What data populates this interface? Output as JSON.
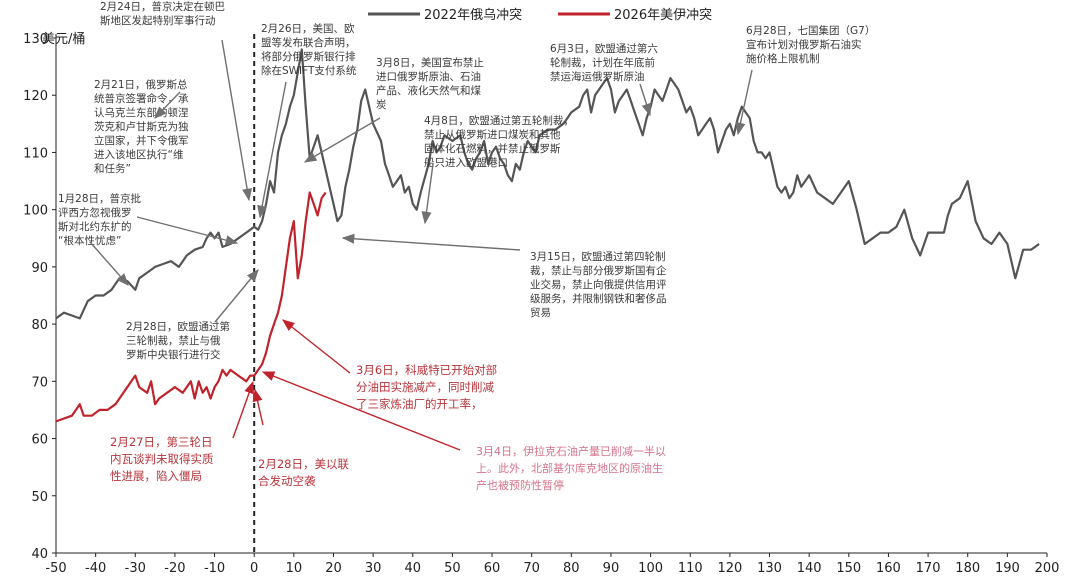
{
  "chart_data": {
    "type": "line",
    "ylabel": "美元/桶",
    "xlim": [
      -50,
      200
    ],
    "ylim": [
      40,
      130
    ],
    "xticks": [
      -50,
      -40,
      -30,
      -20,
      -10,
      0,
      10,
      20,
      30,
      40,
      50,
      60,
      70,
      80,
      90,
      100,
      110,
      120,
      130,
      140,
      150,
      160,
      170,
      180,
      190,
      200
    ],
    "yticks": [
      40,
      50,
      60,
      70,
      80,
      90,
      100,
      110,
      120,
      130
    ],
    "vline_x": 0,
    "legend_position": "top-center",
    "series": [
      {
        "name": "2022年俄乌冲突",
        "color": "#555555",
        "points": [
          [
            -50,
            81
          ],
          [
            -48,
            82
          ],
          [
            -46,
            81.5
          ],
          [
            -44,
            81
          ],
          [
            -42,
            84
          ],
          [
            -40,
            85
          ],
          [
            -38,
            85
          ],
          [
            -36,
            86
          ],
          [
            -34,
            88
          ],
          [
            -32,
            87.5
          ],
          [
            -30,
            86
          ],
          [
            -29,
            88
          ],
          [
            -27,
            89
          ],
          [
            -25,
            90
          ],
          [
            -23,
            90.5
          ],
          [
            -21,
            91
          ],
          [
            -19,
            90
          ],
          [
            -17,
            92
          ],
          [
            -15,
            93
          ],
          [
            -13,
            93.5
          ],
          [
            -12,
            95
          ],
          [
            -11,
            96
          ],
          [
            -10,
            95
          ],
          [
            -9,
            96
          ],
          [
            -8,
            93.5
          ],
          [
            -6,
            94
          ],
          [
            -4,
            95
          ],
          [
            -2,
            96
          ],
          [
            0,
            97
          ],
          [
            1,
            96.5
          ],
          [
            2,
            98
          ],
          [
            3,
            101
          ],
          [
            4,
            105
          ],
          [
            5,
            103
          ],
          [
            6,
            110
          ],
          [
            7,
            113
          ],
          [
            8,
            115
          ],
          [
            9,
            118
          ],
          [
            10,
            120
          ],
          [
            11,
            124
          ],
          [
            12,
            128
          ],
          [
            13,
            118
          ],
          [
            14,
            109
          ],
          [
            15,
            111
          ],
          [
            16,
            113
          ],
          [
            17,
            110
          ],
          [
            18,
            107
          ],
          [
            19,
            104
          ],
          [
            20,
            101
          ],
          [
            21,
            98
          ],
          [
            22,
            99
          ],
          [
            23,
            104
          ],
          [
            24,
            107
          ],
          [
            25,
            111
          ],
          [
            26,
            114
          ],
          [
            27,
            119
          ],
          [
            28,
            121
          ],
          [
            29,
            118
          ],
          [
            30,
            115
          ],
          [
            32,
            112
          ],
          [
            33,
            108
          ],
          [
            34,
            106
          ],
          [
            35,
            104
          ],
          [
            36,
            105
          ],
          [
            37,
            106
          ],
          [
            38,
            103
          ],
          [
            39,
            104
          ],
          [
            40,
            101
          ],
          [
            41,
            100
          ],
          [
            42,
            103
          ],
          [
            44,
            108
          ],
          [
            45,
            112
          ],
          [
            46,
            110
          ],
          [
            47,
            111
          ],
          [
            48,
            113
          ],
          [
            50,
            112
          ],
          [
            52,
            113
          ],
          [
            53,
            110
          ],
          [
            54,
            108
          ],
          [
            55,
            107
          ],
          [
            56,
            109
          ],
          [
            57,
            110
          ],
          [
            58,
            112
          ],
          [
            59,
            108
          ],
          [
            60,
            110
          ],
          [
            61,
            111
          ],
          [
            62,
            109
          ],
          [
            63,
            108
          ],
          [
            64,
            106
          ],
          [
            65,
            105
          ],
          [
            66,
            108
          ],
          [
            67,
            107
          ],
          [
            68,
            110
          ],
          [
            69,
            112
          ],
          [
            70,
            111
          ],
          [
            71,
            110
          ],
          [
            72,
            113
          ],
          [
            74,
            114
          ],
          [
            76,
            114
          ],
          [
            78,
            115
          ],
          [
            79,
            116
          ],
          [
            80,
            117
          ],
          [
            82,
            118
          ],
          [
            83,
            120
          ],
          [
            84,
            121
          ],
          [
            85,
            117
          ],
          [
            86,
            120
          ],
          [
            88,
            122
          ],
          [
            89,
            123
          ],
          [
            90,
            121
          ],
          [
            91,
            117
          ],
          [
            92,
            119
          ],
          [
            93,
            120
          ],
          [
            94,
            121
          ],
          [
            95,
            119
          ],
          [
            96,
            117
          ],
          [
            97,
            115
          ],
          [
            98,
            113
          ],
          [
            99,
            116
          ],
          [
            100,
            118
          ],
          [
            101,
            121
          ],
          [
            102,
            120
          ],
          [
            103,
            119
          ],
          [
            104,
            121
          ],
          [
            105,
            123
          ],
          [
            106,
            122
          ],
          [
            107,
            121
          ],
          [
            108,
            119
          ],
          [
            109,
            117
          ],
          [
            110,
            118
          ],
          [
            111,
            116
          ],
          [
            112,
            113
          ],
          [
            113,
            114
          ],
          [
            114,
            115
          ],
          [
            115,
            116
          ],
          [
            116,
            114
          ],
          [
            117,
            110
          ],
          [
            118,
            112
          ],
          [
            119,
            114
          ],
          [
            120,
            115
          ],
          [
            121,
            113
          ],
          [
            122,
            116
          ],
          [
            123,
            118
          ],
          [
            124,
            117
          ],
          [
            125,
            116
          ],
          [
            126,
            112
          ],
          [
            127,
            110
          ],
          [
            128,
            110
          ],
          [
            129,
            109
          ],
          [
            130,
            110
          ],
          [
            131,
            107
          ],
          [
            132,
            104
          ],
          [
            133,
            103
          ],
          [
            134,
            104
          ],
          [
            135,
            102
          ],
          [
            136,
            103
          ],
          [
            137,
            106
          ],
          [
            138,
            104
          ],
          [
            139,
            105
          ],
          [
            140,
            106
          ],
          [
            142,
            103
          ],
          [
            144,
            102
          ],
          [
            146,
            101
          ],
          [
            148,
            103
          ],
          [
            150,
            105
          ],
          [
            152,
            100
          ],
          [
            154,
            94
          ],
          [
            156,
            95
          ],
          [
            158,
            96
          ],
          [
            160,
            96
          ],
          [
            162,
            97
          ],
          [
            164,
            100
          ],
          [
            166,
            95
          ],
          [
            168,
            92
          ],
          [
            170,
            96
          ],
          [
            172,
            96
          ],
          [
            174,
            96
          ],
          [
            175,
            99
          ],
          [
            176,
            101
          ],
          [
            178,
            102
          ],
          [
            180,
            105
          ],
          [
            182,
            98
          ],
          [
            184,
            95
          ],
          [
            186,
            94
          ],
          [
            188,
            96
          ],
          [
            190,
            94
          ],
          [
            192,
            88
          ],
          [
            194,
            93
          ],
          [
            196,
            93
          ],
          [
            198,
            94
          ]
        ]
      },
      {
        "name": "2026年美伊冲突",
        "color": "#c0232b",
        "points": [
          [
            -50,
            63
          ],
          [
            -48,
            63.5
          ],
          [
            -46,
            64
          ],
          [
            -44,
            66
          ],
          [
            -43,
            64
          ],
          [
            -41,
            64
          ],
          [
            -39,
            65
          ],
          [
            -37,
            65
          ],
          [
            -35,
            66
          ],
          [
            -33,
            68
          ],
          [
            -31,
            70
          ],
          [
            -30,
            71
          ],
          [
            -29,
            69
          ],
          [
            -27,
            68
          ],
          [
            -26,
            70
          ],
          [
            -25,
            66
          ],
          [
            -24,
            67
          ],
          [
            -22,
            68
          ],
          [
            -20,
            69
          ],
          [
            -18,
            68
          ],
          [
            -16,
            70
          ],
          [
            -15,
            67
          ],
          [
            -14,
            70
          ],
          [
            -13,
            68
          ],
          [
            -12,
            69
          ],
          [
            -11,
            67
          ],
          [
            -10,
            69
          ],
          [
            -9,
            70
          ],
          [
            -8,
            72
          ],
          [
            -7,
            71
          ],
          [
            -6,
            72
          ],
          [
            -4,
            71
          ],
          [
            -2,
            70
          ],
          [
            -1,
            71
          ],
          [
            0,
            71
          ],
          [
            1,
            72
          ],
          [
            2,
            73
          ],
          [
            3,
            75
          ],
          [
            4,
            78
          ],
          [
            5,
            80
          ],
          [
            6,
            82
          ],
          [
            7,
            85
          ],
          [
            8,
            90
          ],
          [
            9,
            95
          ],
          [
            10,
            98
          ],
          [
            11,
            88
          ],
          [
            12,
            92
          ],
          [
            13,
            98
          ],
          [
            14,
            103
          ],
          [
            15,
            101
          ],
          [
            16,
            99
          ],
          [
            17,
            102
          ],
          [
            18,
            103
          ]
        ]
      }
    ],
    "annotations": [
      {
        "lines": [
          "2月24日，普京决定在顿巴",
          "斯地区发起特别军事行动"
        ]
      },
      {
        "lines": [
          "2月21日，俄罗斯总",
          "统普京签署命令，承",
          "认乌克兰东部的顿涅",
          "茨克和卢甘斯克为独",
          "立国家，并下令俄军",
          "进入该地区执行“维",
          "和任务”"
        ]
      },
      {
        "lines": [
          "1月28日，普京批",
          "评西方忽视俄罗",
          "斯对北约东扩的",
          "“根本性忧虑”"
        ]
      },
      {
        "lines": [
          "2月26日，美国、欧",
          "盟等发布联合声明，",
          "将部分俄罗斯银行排",
          "除在SWIFT支付系统"
        ]
      },
      {
        "lines": [
          "3月8日，美国宣布禁止",
          "进口俄罗斯原油、石油",
          "产品、液化天然气和煤",
          "炭"
        ]
      },
      {
        "lines": [
          "4月8日，欧盟通过第五轮制裁，",
          "禁止从俄罗斯进口煤炭和其他",
          "固体化石燃料，并禁止俄罗斯",
          "船只进入欧盟港口"
        ]
      },
      {
        "lines": [
          "6月3日，欧盟通过第六",
          "轮制裁，计划在年底前",
          "禁运海运俄罗斯原油"
        ]
      },
      {
        "lines": [
          "6月28日，七国集团（G7）",
          "宣布计划对俄罗斯石油实",
          "施价格上限机制"
        ]
      },
      {
        "lines": [
          "3月15日，欧盟通过第四轮制",
          "裁，禁止与部分俄罗斯国有企",
          "业交易，禁止向俄提供信用评",
          "级服务，并限制钢铁和奢侈品",
          "贸易"
        ]
      },
      {
        "lines": [
          "2月28日，欧盟通过第",
          "三轮制裁，禁止与俄",
          "罗斯中央银行进行交"
        ]
      },
      {
        "lines": [
          "3月6日，科威特已开始对部",
          "分油田实施减产，同时削减",
          "了三家炼油厂的开工率，"
        ]
      },
      {
        "lines": [
          "2月27日，第三轮日",
          "内瓦谈判未取得实质",
          "性进展，陷入僵局"
        ]
      },
      {
        "lines": [
          "2月28日，美以联",
          "合发动空袭"
        ]
      },
      {
        "lines": [
          "3月4日，伊拉克石油产量已削减一半以",
          "上。此外，北部基尔库克地区的原油生",
          "产也被预防性暂停"
        ]
      }
    ]
  }
}
